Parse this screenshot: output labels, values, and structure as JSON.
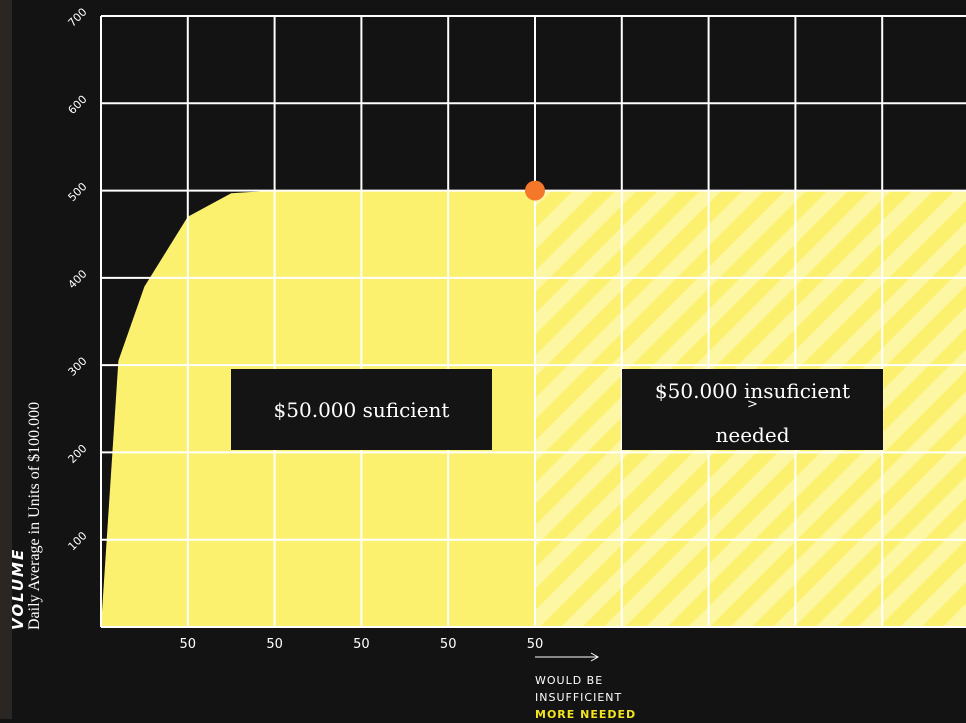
{
  "chart_data": {
    "type": "area",
    "ylabel": "VOLUME",
    "ylabel_sub": "Daily Average in Units of $100.000",
    "ylim": [
      0,
      700
    ],
    "y_ticks": [
      "100",
      "200",
      "300",
      "400",
      "500",
      "600",
      "700"
    ],
    "x_tick_labels": [
      "50",
      "50",
      "50",
      "50",
      "50"
    ],
    "grid": true,
    "series": [
      {
        "curve": [
          [
            0,
            0
          ],
          [
            0.2,
            305
          ],
          [
            0.5,
            390
          ],
          [
            1,
            470
          ],
          [
            1.5,
            497
          ],
          [
            2,
            500
          ],
          [
            3,
            500
          ],
          [
            4,
            500
          ],
          [
            5,
            500
          ],
          [
            6,
            500
          ],
          [
            7,
            500
          ],
          [
            8,
            500
          ],
          [
            9,
            500
          ],
          [
            10,
            500
          ]
        ]
      }
    ],
    "threshold_point": {
      "x": 5,
      "y": 500
    },
    "regions": [
      {
        "label": "$50.000 suficient"
      },
      {
        "label_lines": [
          "$50.000 insuficient",
          ">",
          "needed"
        ]
      }
    ],
    "annotation": {
      "arrow": "⟶",
      "lines": [
        "WOULD BE",
        "INSUFFICIENT"
      ],
      "highlight": "MORE NEEDED"
    },
    "colors": {
      "background": "#131313",
      "fill": "#fcf16e",
      "hatch_light": "#fdf6a3",
      "grid": "#ffffff",
      "point": "#f5782a",
      "highlight_text": "#f2e51f"
    }
  }
}
